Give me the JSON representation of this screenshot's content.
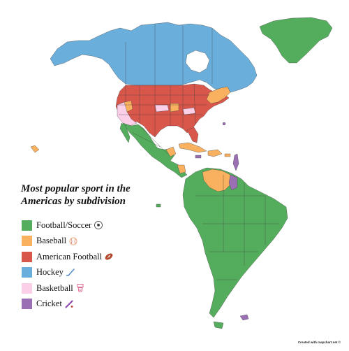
{
  "title_line1": "Most popular sport in the",
  "title_line2": "Americas by subdivision",
  "legend": [
    {
      "label": "Football/Soccer",
      "color": "#54ad5c",
      "icon": "soccer-ball-icon"
    },
    {
      "label": "Baseball",
      "color": "#f9b15f",
      "icon": "baseball-icon"
    },
    {
      "label": "American Football",
      "color": "#d9564a",
      "icon": "american-football-icon"
    },
    {
      "label": "Hockey",
      "color": "#6aaedc",
      "icon": "hockey-stick-icon"
    },
    {
      "label": "Basketball",
      "color": "#fbcfe8",
      "icon": "basketball-hoop-icon"
    },
    {
      "label": "Cricket",
      "color": "#9a6fb4",
      "icon": "cricket-bat-icon"
    }
  ],
  "credit": "Created with mapchart.net ©"
}
